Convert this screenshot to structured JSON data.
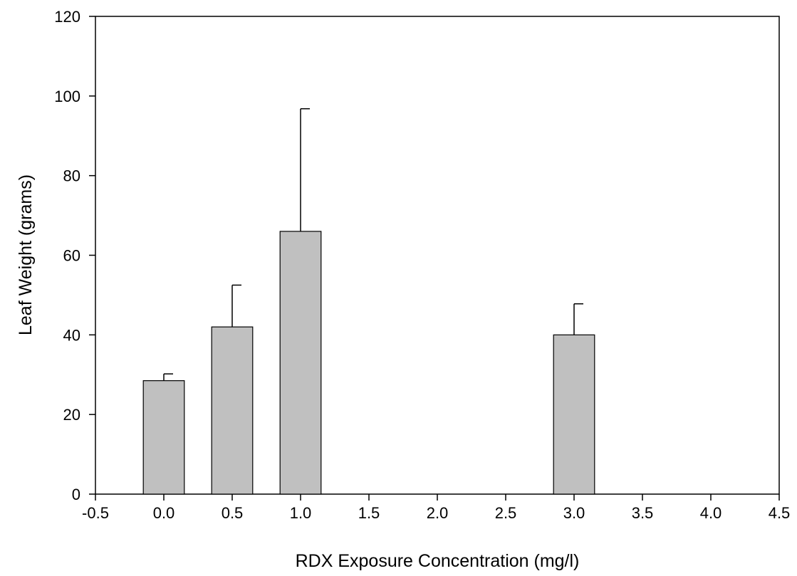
{
  "chart_data": {
    "type": "bar",
    "title": "",
    "xlabel": "RDX Exposure Concentration (mg/l)",
    "ylabel": "Leaf Weight (grams)",
    "xlim": [
      -0.5,
      4.5
    ],
    "ylim": [
      0,
      120
    ],
    "xticks": [
      "-0.5",
      "0.0",
      "0.5",
      "1.0",
      "1.5",
      "2.0",
      "2.5",
      "3.0",
      "3.5",
      "4.0",
      "4.5"
    ],
    "yticks": [
      "0",
      "20",
      "40",
      "60",
      "80",
      "100",
      "120"
    ],
    "bar_width": 0.3,
    "grid": false,
    "legend": "none",
    "bar_color": "#c0c0c0",
    "series": [
      {
        "points": [
          {
            "x": 0.0,
            "y": 28.5,
            "error_upper": 30.2
          },
          {
            "x": 0.5,
            "y": 42.0,
            "error_upper": 52.5
          },
          {
            "x": 1.0,
            "y": 66.0,
            "error_upper": 96.8
          },
          {
            "x": 3.0,
            "y": 40.0,
            "error_upper": 47.8
          }
        ]
      }
    ]
  }
}
